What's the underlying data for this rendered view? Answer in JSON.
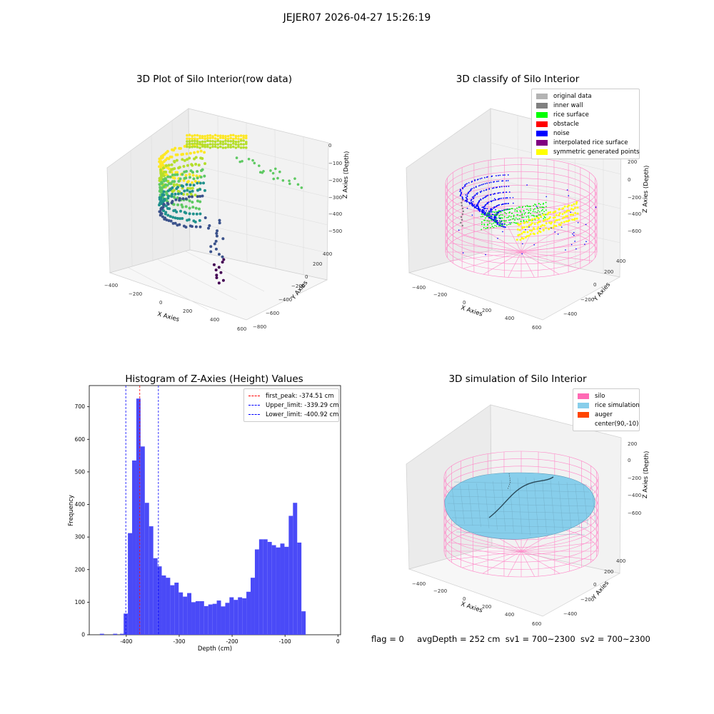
{
  "figure": {
    "title": "JEJER07 2026-04-27 15:26:19",
    "status_line": {
      "flag": "flag = 0",
      "avg_depth": "avgDepth = 252 cm",
      "sv1": "sv1 = 700~2300",
      "sv2": "sv2 = 700~2300"
    }
  },
  "chart_data": [
    {
      "type": "scatter",
      "projection": "3d",
      "title": "3D Plot of Silo Interior(row data)",
      "xlabel": "X Axies",
      "ylabel": "Y Axies",
      "zlabel": "Z Axies (Depth)",
      "x_ticks": [
        "−400",
        "−200",
        "0",
        "200",
        "400",
        "600"
      ],
      "y_ticks": [
        "−800",
        "−600",
        "−400",
        "−200",
        "0",
        "200",
        "400"
      ],
      "z_ticks": [
        "0",
        "−100",
        "−200",
        "−300",
        "−400",
        "−500"
      ],
      "colormap": "viridis"
    },
    {
      "type": "scatter",
      "projection": "3d",
      "title": "3D classify of Silo Interior",
      "xlabel": "X Axies",
      "ylabel": "Y Axies",
      "zlabel": "Z Axies (Depth)",
      "x_ticks": [
        "−400",
        "−200",
        "0",
        "200",
        "400",
        "600"
      ],
      "y_ticks": [
        "−400",
        "−200",
        "0",
        "200",
        "400"
      ],
      "z_ticks": [
        "200",
        "0",
        "−200",
        "−400",
        "−600"
      ],
      "legend_position": "top-right",
      "legend": [
        {
          "label": "original data",
          "color": "#b3b3b3"
        },
        {
          "label": "inner wall",
          "color": "#808080"
        },
        {
          "label": "rice surface",
          "color": "#00ff00"
        },
        {
          "label": "obstacle",
          "color": "#ff0000"
        },
        {
          "label": "noise",
          "color": "#0000ff"
        },
        {
          "label": "interpolated rice surface",
          "color": "#800080"
        },
        {
          "label": "symmetric generated points",
          "color": "#ffff00"
        }
      ]
    },
    {
      "type": "bar",
      "title": "Histogram of Z-Axies (Height) Values",
      "xlabel": "Depth (cm)",
      "ylabel": "Frequency",
      "xlim": [
        -470,
        5
      ],
      "ylim": [
        0,
        765
      ],
      "x_ticks": [
        -400,
        -300,
        -200,
        -100,
        0
      ],
      "y_ticks": [
        0,
        100,
        200,
        300,
        400,
        500,
        600,
        700
      ],
      "bar_color": "#4a4af7",
      "bin_start": -405,
      "bin_width": 8,
      "values": [
        65,
        312,
        535,
        725,
        578,
        405,
        333,
        235,
        210,
        182,
        175,
        152,
        160,
        130,
        117,
        128,
        100,
        103,
        103,
        88,
        93,
        95,
        105,
        87,
        98,
        115,
        107,
        115,
        112,
        132,
        175,
        262,
        293,
        293,
        285,
        275,
        268,
        280,
        270,
        365,
        405,
        283,
        72
      ],
      "outlier_bins": [
        {
          "x": -450,
          "value": 3
        },
        {
          "x": -425,
          "value": 3
        },
        {
          "x": -412,
          "value": 3
        }
      ],
      "reference_lines": [
        {
          "label": "first_peak: -374.51 cm",
          "x": -374.51,
          "color": "#ff0000"
        },
        {
          "label": "Upper_limit: -339.29 cm",
          "x": -339.29,
          "color": "#0000ff"
        },
        {
          "label": "Lower_limit: -400.92 cm",
          "x": -400.92,
          "color": "#0000ff"
        }
      ],
      "legend_position": "top-right"
    },
    {
      "type": "scatter",
      "projection": "3d",
      "title": "3D simulation of Silo Interior",
      "xlabel": "X Axies",
      "ylabel": "Y Axies",
      "zlabel": "Z Axies (Depth)",
      "x_ticks": [
        "−400",
        "−200",
        "0",
        "200",
        "400",
        "600"
      ],
      "y_ticks": [
        "−400",
        "−200",
        "0",
        "200",
        "400"
      ],
      "z_ticks": [
        "200",
        "0",
        "−200",
        "−400",
        "−600"
      ],
      "legend_position": "top-right",
      "legend": [
        {
          "label": "silo",
          "color": "#ff69b4"
        },
        {
          "label": "rice simulation",
          "color": "#87ceeb"
        },
        {
          "label": "auger",
          "color": "#ff4500"
        },
        {
          "label": "center(90,-10)",
          "color": ""
        }
      ]
    }
  ]
}
